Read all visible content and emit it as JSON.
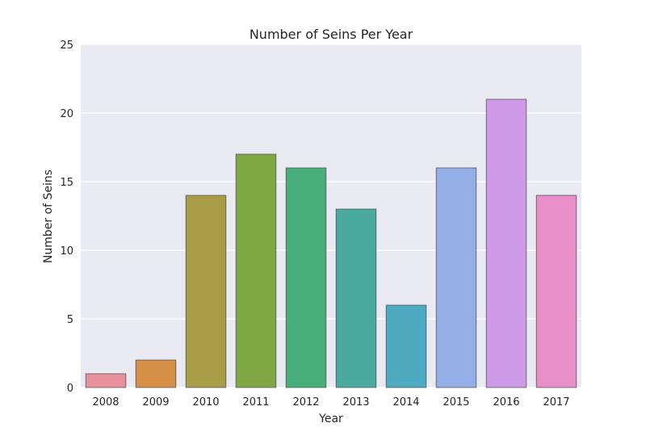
{
  "chart_data": {
    "type": "bar",
    "title": "Number of Seins Per Year",
    "xlabel": "Year",
    "ylabel": "Number of Seins",
    "categories": [
      "2008",
      "2009",
      "2010",
      "2011",
      "2012",
      "2013",
      "2014",
      "2015",
      "2016",
      "2017"
    ],
    "values": [
      1,
      2,
      14,
      17,
      16,
      13,
      6,
      16,
      21,
      14
    ],
    "colors": [
      "#e8909c",
      "#d68f47",
      "#a89c47",
      "#7fa845",
      "#48ae7a",
      "#4aaaa0",
      "#4eaac0",
      "#94aee6",
      "#cf9ae8",
      "#e88ec8"
    ],
    "ylim": [
      0,
      25
    ],
    "yticks": [
      "0",
      "5",
      "10",
      "15",
      "20",
      "25"
    ],
    "grid": true,
    "plot_background": "#eaeaf2",
    "grid_color": "#ffffff"
  }
}
